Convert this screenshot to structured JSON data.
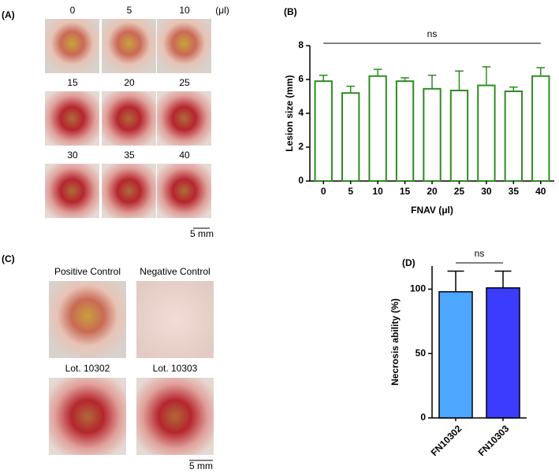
{
  "panels": {
    "A": {
      "letter": "(A)",
      "labels": [
        "0",
        "5",
        "10",
        "15",
        "20",
        "25",
        "30",
        "35",
        "40"
      ],
      "unit": "(μl)",
      "scale": "5 mm"
    },
    "C": {
      "letter": "(C)",
      "labels": [
        "Positive Control",
        "Negative Control",
        "Lot. 10302",
        "Lot. 10303"
      ],
      "scale": "5 mm"
    }
  },
  "chart_data": [
    {
      "type": "bar",
      "letter": "(B)",
      "x_label": "FNAV (μl)",
      "y_label": "Lesion size (mm)",
      "annotation": "ns",
      "categories": [
        "0",
        "5",
        "10",
        "15",
        "20",
        "25",
        "30",
        "35",
        "40"
      ],
      "values": [
        5.9,
        5.2,
        6.2,
        5.9,
        5.45,
        5.35,
        5.65,
        5.3,
        6.2
      ],
      "errors": [
        0.35,
        0.4,
        0.4,
        0.2,
        0.8,
        1.15,
        1.1,
        0.25,
        0.5
      ],
      "color": "#2e8b22",
      "fill": "#ffffff",
      "ylim": [
        0,
        8
      ],
      "yticks": [
        0,
        2,
        4,
        6,
        8
      ]
    },
    {
      "type": "bar",
      "letter": "(D)",
      "y_label": "Necrosis ability (%)",
      "annotation": "ns",
      "categories": [
        "FN10302",
        "FN10303"
      ],
      "values": [
        98,
        101
      ],
      "errors": [
        16,
        13
      ],
      "colors": [
        "#4da6ff",
        "#3c3cff"
      ],
      "ylim": [
        0,
        118
      ],
      "yticks": [
        0,
        50,
        100
      ]
    }
  ]
}
